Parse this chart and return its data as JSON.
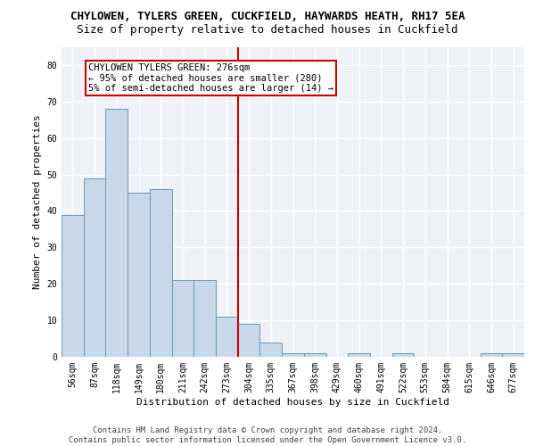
{
  "title_line1": "CHYLOWEN, TYLERS GREEN, CUCKFIELD, HAYWARDS HEATH, RH17 5EA",
  "title_line2": "Size of property relative to detached houses in Cuckfield",
  "xlabel": "Distribution of detached houses by size in Cuckfield",
  "ylabel": "Number of detached properties",
  "categories": [
    "56sqm",
    "87sqm",
    "118sqm",
    "149sqm",
    "180sqm",
    "211sqm",
    "242sqm",
    "273sqm",
    "304sqm",
    "335sqm",
    "367sqm",
    "398sqm",
    "429sqm",
    "460sqm",
    "491sqm",
    "522sqm",
    "553sqm",
    "584sqm",
    "615sqm",
    "646sqm",
    "677sqm"
  ],
  "values": [
    39,
    49,
    68,
    45,
    46,
    21,
    21,
    11,
    9,
    4,
    1,
    1,
    0,
    1,
    0,
    1,
    0,
    0,
    0,
    1,
    1
  ],
  "bar_color": "#c8d8e8",
  "bar_edge_color": "#6699bb",
  "vline_color": "#cc0000",
  "annotation_text": "CHYLOWEN TYLERS GREEN: 276sqm\n← 95% of detached houses are smaller (280)\n5% of semi-detached houses are larger (14) →",
  "annotation_box_color": "white",
  "annotation_box_edge_color": "#cc0000",
  "ylim": [
    0,
    85
  ],
  "yticks": [
    0,
    10,
    20,
    30,
    40,
    50,
    60,
    70,
    80
  ],
  "footer_line1": "Contains HM Land Registry data © Crown copyright and database right 2024.",
  "footer_line2": "Contains public sector information licensed under the Open Government Licence v3.0.",
  "background_color": "#eef2f7",
  "grid_color": "#ffffff",
  "title_fontsize": 9,
  "subtitle_fontsize": 9,
  "label_fontsize": 8,
  "tick_fontsize": 7,
  "annotation_fontsize": 7.5,
  "footer_fontsize": 6.5
}
